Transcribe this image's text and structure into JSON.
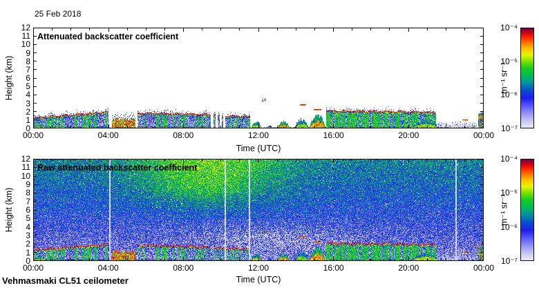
{
  "header": {
    "date": "25 Feb 2018"
  },
  "footer": {
    "instrument": "Vehmasmaki CL51 ceilometer"
  },
  "palette": {
    "background": "#ffffff",
    "text_color": "#000000",
    "colormap_stops": [
      [
        0.0,
        [
          236,
          236,
          248
        ]
      ],
      [
        0.07,
        [
          200,
          200,
          242
        ]
      ],
      [
        0.14,
        [
          152,
          152,
          246
        ]
      ],
      [
        0.22,
        [
          90,
          90,
          252
        ]
      ],
      [
        0.3,
        [
          30,
          30,
          235
        ]
      ],
      [
        0.38,
        [
          10,
          80,
          205
        ]
      ],
      [
        0.45,
        [
          0,
          145,
          155
        ]
      ],
      [
        0.52,
        [
          0,
          185,
          95
        ]
      ],
      [
        0.6,
        [
          25,
          205,
          30
        ]
      ],
      [
        0.67,
        [
          130,
          225,
          0
        ]
      ],
      [
        0.73,
        [
          230,
          245,
          0
        ]
      ],
      [
        0.79,
        [
          255,
          195,
          0
        ]
      ],
      [
        0.85,
        [
          255,
          120,
          0
        ]
      ],
      [
        0.91,
        [
          255,
          30,
          0
        ]
      ],
      [
        0.96,
        [
          185,
          0,
          25
        ]
      ],
      [
        1.0,
        [
          112,
          0,
          92
        ]
      ]
    ]
  },
  "chart_data": [
    {
      "type": "heatmap",
      "id": "processed",
      "title": "Attenuated backscatter coefficient",
      "xlabel": "Time (UTC)",
      "ylabel": "Height (km)",
      "x_range_hours": [
        0,
        24
      ],
      "x_tick_hours": [
        0,
        4,
        8,
        12,
        16,
        20,
        24
      ],
      "x_tick_labels": [
        "00:00",
        "04:00",
        "08:00",
        "12:00",
        "16:00",
        "20:00",
        "00:00"
      ],
      "x_minor_tick_every_hours": 1,
      "y_range_km": [
        0,
        12
      ],
      "y_tick_km": [
        0,
        1,
        2,
        3,
        4,
        5,
        6,
        7,
        8,
        9,
        10,
        11,
        12
      ],
      "colorbar": {
        "label": "m⁻¹ sr⁻¹",
        "scale": "log",
        "max": "1e-4",
        "min": "1e-7",
        "tick_labels": [
          "10⁻⁴",
          "10⁻⁵",
          "10⁻⁶",
          "10⁻⁷"
        ]
      },
      "features": {
        "surface_line": true,
        "micro_gap_hours": [
          9.78,
          9.98,
          10.18
        ],
        "segments": [
          {
            "kind": "layer",
            "t0": 0,
            "t1": 4.02,
            "top0": 1.35,
            "top1": 2.05,
            "streaks": 0.5,
            "ground": 0.25
          },
          {
            "kind": "ground_blob",
            "t": 0.3,
            "w": 0.5,
            "hkm": 0.5,
            "i": 1
          },
          {
            "kind": "precip",
            "t0": 4.18,
            "t1": 5.45,
            "top": 1.25
          },
          {
            "kind": "layer",
            "t0": 5.55,
            "t1": 9.45,
            "top0": 1.95,
            "top1": 1.72,
            "streaks": 0.45,
            "ground": 0.2
          },
          {
            "kind": "layer",
            "t0": 9.6,
            "t1": 11.55,
            "top0": 1.62,
            "top1": 1.5,
            "streaks": 0.3,
            "ground": 0.12
          },
          {
            "kind": "ground_blob",
            "t": 11.9,
            "w": 0.3,
            "hkm": 0.85,
            "i": 0.9
          },
          {
            "kind": "speck",
            "t": 12.3,
            "km": 3.45
          },
          {
            "kind": "ground_blob",
            "t": 12.6,
            "w": 0.18,
            "hkm": 0.4,
            "i": 0.55
          },
          {
            "kind": "ground_blob",
            "t": 13.35,
            "w": 0.35,
            "hkm": 0.85,
            "i": 1
          },
          {
            "kind": "dash",
            "t0": 14.2,
            "t1": 14.55,
            "km": 2.9
          },
          {
            "kind": "ground_blob",
            "t": 14.3,
            "w": 0.4,
            "hkm": 1.1,
            "i": 0.85
          },
          {
            "kind": "dash",
            "t0": 14.95,
            "t1": 15.35,
            "km": 2.3
          },
          {
            "kind": "ground_blob",
            "t": 15.15,
            "w": 0.45,
            "hkm": 1.6,
            "i": 1
          },
          {
            "kind": "layer",
            "t0": 15.6,
            "t1": 21.45,
            "top0": 2.2,
            "top1": 2.0,
            "streaks": 0.75,
            "ground": 0.3
          },
          {
            "kind": "ground_blob",
            "t": 20.9,
            "w": 0.8,
            "hkm": 1,
            "i": 0.9
          },
          {
            "kind": "faint",
            "t0": 21.5,
            "t1": 23.65,
            "hkm": 1
          },
          {
            "kind": "dash",
            "t0": 22.85,
            "t1": 23.15,
            "km": 1.05
          },
          {
            "kind": "column",
            "t0": 23.7,
            "t1": 24,
            "hkm": 1.9
          }
        ]
      }
    },
    {
      "type": "heatmap",
      "id": "raw",
      "title": "Raw attenuated backscatter coefficient",
      "xlabel": "Time (UTC)",
      "ylabel": "Height (km)",
      "x_range_hours": [
        0,
        24
      ],
      "x_tick_hours": [
        0,
        4,
        8,
        12,
        16,
        20,
        24
      ],
      "x_tick_labels": [
        "00:00",
        "04:00",
        "08:00",
        "12:00",
        "16:00",
        "20:00",
        "00:00"
      ],
      "x_minor_tick_every_hours": 1,
      "y_range_km": [
        0,
        12
      ],
      "y_tick_km": [
        0,
        1,
        2,
        3,
        4,
        5,
        6,
        7,
        8,
        9,
        10,
        11,
        12
      ],
      "colorbar": {
        "label": "m⁻¹ sr⁻¹",
        "scale": "log",
        "max": "1e-4",
        "min": "1e-7",
        "tick_labels": [
          "10⁻⁴",
          "10⁻⁵",
          "10⁻⁶",
          "10⁻⁷"
        ]
      },
      "features": {
        "overlay_segments_from": "processed",
        "gap_stripe_hours": [
          4.05,
          10.2,
          11.5,
          22.5
        ],
        "noise": {
          "base_bottom": 0.15,
          "base_top": 0.45,
          "grain": 0.32,
          "plume": {
            "t_center": 9.3,
            "t_sigma": 3.8,
            "amp": 0.2,
            "km_start": 4.5
          },
          "white_zone": {
            "t_center": 12.5,
            "t_sigma": 4,
            "km_center": 2.6,
            "km_sigma": 1.3,
            "prob": 0.38
          },
          "white_base_prob": 0.035
        }
      }
    }
  ]
}
